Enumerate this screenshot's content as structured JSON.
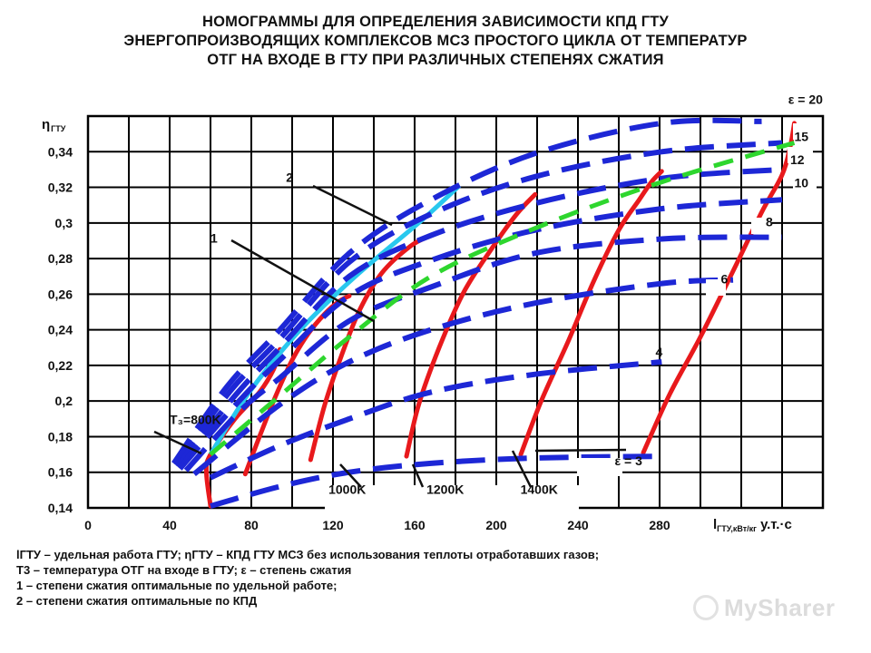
{
  "title_lines": [
    "НОМОГРАММЫ ДЛЯ ОПРЕДЕЛЕНИЯ ЗАВИСИМОСТИ КПД ГТУ",
    "ЭНЕРГОПРОИЗВОДЯЩИХ  КОМПЛЕКСОВ МСЗ ПРОСТОГО ЦИКЛА ОТ ТЕМПЕРАТУР",
    "ОТГ НА ВХОДЕ В ГТУ ПРИ РАЗЛИЧНЫХ СТЕПЕНЯХ СЖАТИЯ"
  ],
  "legend_lines": [
    "lГТУ – удельная работа ГТУ; ηГТУ – КПД ГТУ МСЗ без использования теплоты отработавших газов;",
    "T3 – температура ОТГ на входе в ГТУ; ε – степень сжатия",
    "1 – степени сжатия оптимальные по удельной работе;",
    "2 – степени сжатия оптимальные по КПД"
  ],
  "watermark": "MySharer",
  "colors": {
    "temperature": "#e8191c",
    "pressure": "#1d27d6",
    "opt_work": "#2ed62e",
    "opt_eff": "#28c8ee",
    "grid": "#000000"
  },
  "chart_data": {
    "type": "line",
    "title": "НОМОГРАММЫ ДЛЯ ОПРЕДЕЛЕНИЯ ЗАВИСИМОСТИ КПД ГТУ ЭНЕРГОПРОИЗВОДЯЩИХ КОМПЛЕКСОВ МСЗ ПРОСТОГО ЦИКЛА ОТ ТЕМПЕРАТУР ОТГ НА ВХОДЕ В ГТУ ПРИ РАЗЛИЧНЫХ СТЕПЕНЯХ СЖАТИЯ",
    "xlabel": "l ГТУ,кВт/кг у.т.·с",
    "ylabel": "η ГТУ",
    "xlim": [
      0,
      360
    ],
    "ylim": [
      0.14,
      0.36
    ],
    "x_ticks": [
      "0",
      "40",
      "80",
      "120",
      "160",
      "200",
      "240",
      "280"
    ],
    "x_tick_values": [
      0,
      40,
      80,
      120,
      160,
      200,
      240,
      280
    ],
    "y_ticks": [
      "0,34",
      "0,32",
      "0,3",
      "0,28",
      "0,26",
      "0,24",
      "0,22",
      "0,2",
      "0,18",
      "0,16",
      "0,14"
    ],
    "y_tick_values": [
      0.34,
      0.32,
      0.3,
      0.28,
      0.26,
      0.24,
      0.22,
      0.2,
      0.18,
      0.16,
      0.14
    ],
    "grid": true,
    "temperature_series": [
      {
        "name": "T₃=800K",
        "points": [
          [
            60,
            0.141
          ],
          [
            58,
            0.16
          ],
          [
            60,
            0.17
          ],
          [
            72,
            0.19
          ],
          [
            84,
            0.205
          ],
          [
            91,
            0.218
          ],
          [
            94,
            0.229
          ]
        ]
      },
      {
        "name": "1000K",
        "points": [
          [
            77,
            0.159
          ],
          [
            85,
            0.183
          ],
          [
            92,
            0.203
          ],
          [
            100,
            0.223
          ],
          [
            108,
            0.238
          ],
          [
            116,
            0.249
          ],
          [
            123,
            0.256
          ],
          [
            128,
            0.259
          ]
        ]
      },
      {
        "name": "1200K",
        "points": [
          [
            109,
            0.167
          ],
          [
            116,
            0.198
          ],
          [
            124,
            0.225
          ],
          [
            133,
            0.251
          ],
          [
            144,
            0.272
          ],
          [
            158,
            0.287
          ],
          [
            168,
            0.293
          ]
        ]
      },
      {
        "name": "1400K",
        "points": [
          [
            156,
            0.169
          ],
          [
            162,
            0.198
          ],
          [
            172,
            0.23
          ],
          [
            184,
            0.261
          ],
          [
            198,
            0.286
          ],
          [
            210,
            0.305
          ],
          [
            219,
            0.316
          ]
        ]
      },
      {
        "name": "",
        "points": [
          [
            212,
            0.17
          ],
          [
            222,
            0.2
          ],
          [
            235,
            0.233
          ],
          [
            248,
            0.268
          ],
          [
            260,
            0.296
          ],
          [
            270,
            0.313
          ],
          [
            276,
            0.323
          ],
          [
            281,
            0.329
          ]
        ]
      },
      {
        "name": "",
        "points": [
          [
            272,
            0.171
          ],
          [
            285,
            0.204
          ],
          [
            300,
            0.236
          ],
          [
            316,
            0.273
          ],
          [
            330,
            0.306
          ],
          [
            340,
            0.327
          ],
          [
            344,
            0.343
          ],
          [
            346,
            0.356
          ]
        ]
      }
    ],
    "pressure_series": [
      {
        "name": "ε = 3",
        "points": [
          [
            60,
            0.141
          ],
          [
            94,
            0.152
          ],
          [
            128,
            0.16
          ],
          [
            168,
            0.165
          ],
          [
            219,
            0.168
          ],
          [
            281,
            0.169
          ]
        ]
      },
      {
        "name": "4",
        "points": [
          [
            60,
            0.157
          ],
          [
            94,
            0.175
          ],
          [
            128,
            0.19
          ],
          [
            168,
            0.205
          ],
          [
            219,
            0.215
          ],
          [
            281,
            0.222
          ]
        ]
      },
      {
        "name": "6",
        "points": [
          [
            52,
            0.159
          ],
          [
            94,
            0.198
          ],
          [
            128,
            0.222
          ],
          [
            168,
            0.24
          ],
          [
            219,
            0.255
          ],
          [
            281,
            0.266
          ],
          [
            316,
            0.268
          ]
        ]
      },
      {
        "name": "8",
        "points": [
          [
            48,
            0.161
          ],
          [
            75,
            0.195
          ],
          [
            94,
            0.213
          ],
          [
            128,
            0.245
          ],
          [
            168,
            0.264
          ],
          [
            219,
            0.283
          ],
          [
            281,
            0.291
          ],
          [
            340,
            0.292
          ]
        ]
      },
      {
        "name": "10",
        "points": [
          [
            45,
            0.162
          ],
          [
            74,
            0.2
          ],
          [
            94,
            0.223
          ],
          [
            128,
            0.259
          ],
          [
            168,
            0.279
          ],
          [
            219,
            0.296
          ],
          [
            281,
            0.308
          ],
          [
            340,
            0.313
          ]
        ]
      },
      {
        "name": "12",
        "points": [
          [
            44,
            0.163
          ],
          [
            72,
            0.203
          ],
          [
            94,
            0.23
          ],
          [
            128,
            0.27
          ],
          [
            168,
            0.293
          ],
          [
            219,
            0.311
          ],
          [
            281,
            0.325
          ],
          [
            340,
            0.33
          ]
        ]
      },
      {
        "name": "15",
        "points": [
          [
            43,
            0.164
          ],
          [
            70,
            0.206
          ],
          [
            94,
            0.235
          ],
          [
            128,
            0.278
          ],
          [
            168,
            0.305
          ],
          [
            219,
            0.326
          ],
          [
            281,
            0.34
          ],
          [
            340,
            0.345
          ]
        ]
      },
      {
        "name": "ε = 20",
        "points": [
          [
            42,
            0.165
          ],
          [
            68,
            0.208
          ],
          [
            94,
            0.24
          ],
          [
            128,
            0.283
          ],
          [
            168,
            0.313
          ],
          [
            219,
            0.339
          ],
          [
            281,
            0.356
          ],
          [
            330,
            0.357
          ]
        ]
      }
    ],
    "optimal_work_line": {
      "name": "1",
      "points": [
        [
          60,
          0.17
        ],
        [
          94,
          0.203
        ],
        [
          128,
          0.236
        ],
        [
          168,
          0.27
        ],
        [
          219,
          0.297
        ],
        [
          281,
          0.323
        ],
        [
          346,
          0.345
        ]
      ]
    },
    "optimal_efficiency_line": {
      "name": "2",
      "points": [
        [
          60,
          0.17
        ],
        [
          79,
          0.205
        ],
        [
          104,
          0.24
        ],
        [
          131,
          0.27
        ],
        [
          164,
          0.302
        ],
        [
          182,
          0.321
        ]
      ]
    },
    "annotations": [
      {
        "text": "T₃=800K",
        "x": 40,
        "y": 0.187
      },
      {
        "text": "1000K",
        "x": 127,
        "y": 0.148
      },
      {
        "text": "1200K",
        "x": 175,
        "y": 0.148
      },
      {
        "text": "1400K",
        "x": 221,
        "y": 0.148
      },
      {
        "text": "1",
        "x": 60,
        "y": 0.289
      },
      {
        "text": "2",
        "x": 97,
        "y": 0.323
      },
      {
        "text": "ε = 3",
        "x": 258,
        "y": 0.164
      },
      {
        "text": "4",
        "x": 278,
        "y": 0.225
      },
      {
        "text": "6",
        "x": 310,
        "y": 0.266
      },
      {
        "text": "8",
        "x": 332,
        "y": 0.298
      },
      {
        "text": "10",
        "x": 346,
        "y": 0.32
      },
      {
        "text": "12",
        "x": 344,
        "y": 0.333
      },
      {
        "text": "15",
        "x": 346,
        "y": 0.346
      },
      {
        "text": "ε = 20",
        "x": 343,
        "y": 0.367
      }
    ]
  }
}
